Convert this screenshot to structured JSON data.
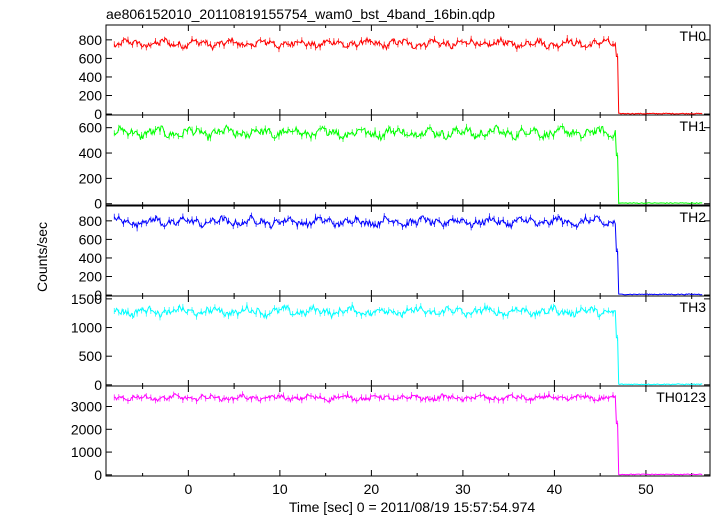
{
  "chart_data": {
    "type": "line",
    "title": "ae806152010_20110819155754_wam0_bst_4band_16bin.qdp",
    "xlabel": "Time [sec] 0 = 2011/08/19 15:57:54.974",
    "ylabel": "Counts/sec",
    "xlim": [
      -9,
      57
    ],
    "xticks": [
      0,
      10,
      20,
      30,
      40,
      50
    ],
    "grid": false,
    "trigger_drop_time": 47.0,
    "panels": [
      {
        "name": "TH0",
        "color": "#ff0000",
        "ylim": [
          -10,
          960
        ],
        "yticks": [
          0,
          200,
          400,
          600,
          800
        ],
        "series": {
          "x_range": [
            -8.1,
            56.2
          ],
          "pre_level": 760,
          "pre_range": [
            640,
            880
          ],
          "post_level": 5,
          "drop_end": 620
        }
      },
      {
        "name": "TH1",
        "color": "#00ff00",
        "ylim": [
          -10,
          700
        ],
        "yticks": [
          0,
          200,
          400,
          600
        ],
        "series": {
          "x_range": [
            -8.1,
            56.2
          ],
          "pre_level": 560,
          "pre_range": [
            460,
            680
          ],
          "post_level": 5,
          "drop_end": 380
        }
      },
      {
        "name": "TH2",
        "color": "#0000ff",
        "ylim": [
          -10,
          960
        ],
        "yticks": [
          0,
          200,
          400,
          600,
          800
        ],
        "series": {
          "x_range": [
            -8.1,
            56.2
          ],
          "pre_level": 790,
          "pre_range": [
            680,
            940
          ],
          "post_level": 8,
          "drop_end": 470
        }
      },
      {
        "name": "TH3",
        "color": "#00ffff",
        "ylim": [
          -20,
          1550
        ],
        "yticks": [
          0,
          500,
          1000,
          1500
        ],
        "series": {
          "x_range": [
            -8.1,
            56.2
          ],
          "pre_level": 1280,
          "pre_range": [
            1100,
            1520
          ],
          "post_level": 10,
          "drop_end": 820
        }
      },
      {
        "name": "TH0123",
        "color": "#ff00ff",
        "ylim": [
          -50,
          3900
        ],
        "yticks": [
          0,
          1000,
          2000,
          3000
        ],
        "series": {
          "x_range": [
            -8.1,
            56.2
          ],
          "pre_level": 3380,
          "pre_range": [
            3150,
            3800
          ],
          "post_level": 20,
          "drop_end": 2250
        }
      }
    ]
  }
}
